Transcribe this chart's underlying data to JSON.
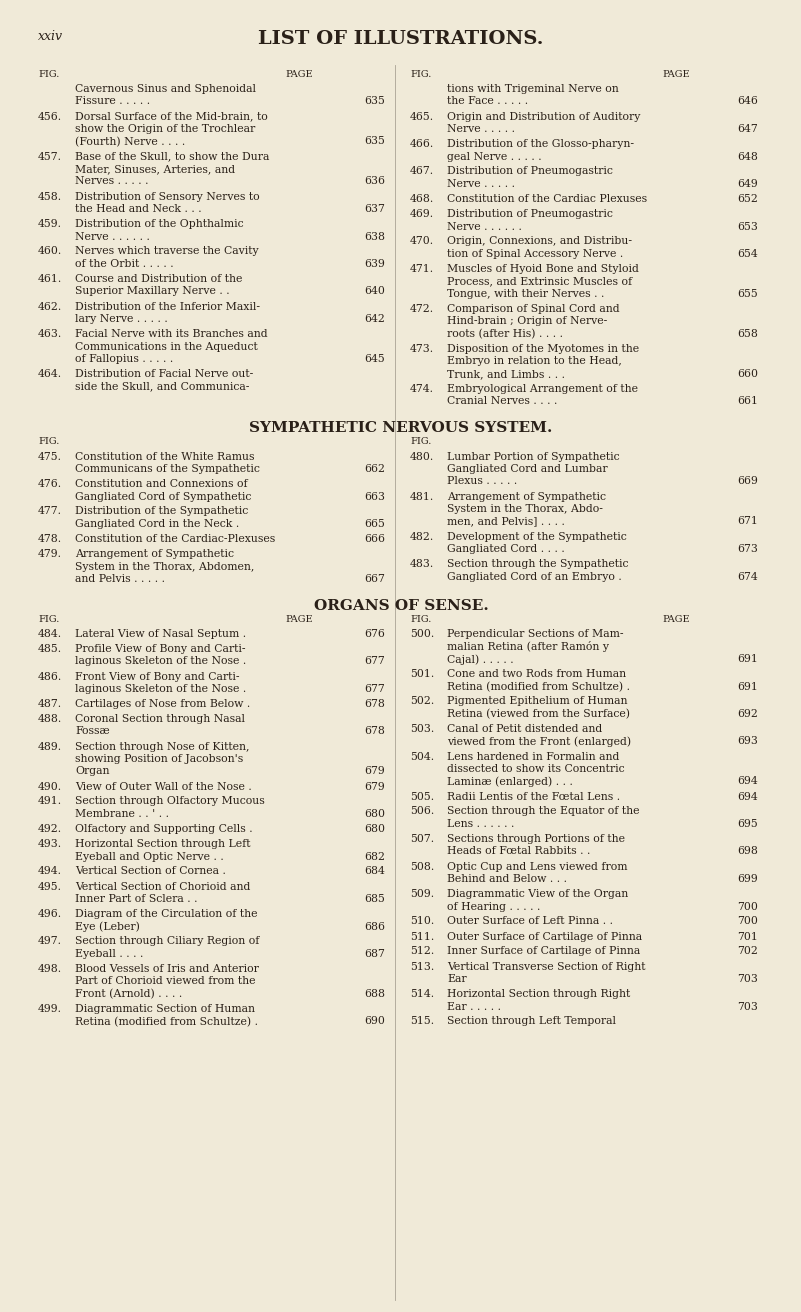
{
  "background_color": "#f0ead8",
  "text_color": "#2a2018",
  "title": "LIST OF ILLUSTRATIONS.",
  "page_label": "xxiv",
  "fig_col_header": "FIG.",
  "page_col_header": "PAGE",
  "left_entries": [
    {
      "fig": "",
      "lines": [
        "Cavernous Sinus and Sphenoidal",
        "Fissure . . . . ."
      ],
      "page": "635"
    },
    {
      "fig": "456.",
      "lines": [
        "Dorsal Surface of the Mid-brain, to",
        "show the Origin of the Trochlear",
        "(Fourth) Nerve . . . ."
      ],
      "page": "635"
    },
    {
      "fig": "457.",
      "lines": [
        "Base of the Skull, to show the Dura",
        "Mater, Sinuses, Arteries, and",
        "Nerves . . . . ."
      ],
      "page": "636"
    },
    {
      "fig": "458.",
      "lines": [
        "Distribution of Sensory Nerves to",
        "the Head and Neck . . ."
      ],
      "page": "637"
    },
    {
      "fig": "459.",
      "lines": [
        "Distribution of the Ophthalmic",
        "Nerve . . . . . ."
      ],
      "page": "638"
    },
    {
      "fig": "460.",
      "lines": [
        "Nerves which traverse the Cavity",
        "of the Orbit . . . . ."
      ],
      "page": "639"
    },
    {
      "fig": "461.",
      "lines": [
        "Course and Distribution of the",
        "Superior Maxillary Nerve . ."
      ],
      "page": "640"
    },
    {
      "fig": "462.",
      "lines": [
        "Distribution of the Inferior Maxil-",
        "lary Nerve . . . . ."
      ],
      "page": "642"
    },
    {
      "fig": "463.",
      "lines": [
        "Facial Nerve with its Branches and",
        "Communications in the Aqueduct",
        "of Fallopius . . . . ."
      ],
      "page": "645"
    },
    {
      "fig": "464.",
      "lines": [
        "Distribution of Facial Nerve out-",
        "side the Skull, and Communica-"
      ],
      "page": ""
    }
  ],
  "right_entries": [
    {
      "fig": "",
      "lines": [
        "tions with Trigeminal Nerve on",
        "the Face . . . . ."
      ],
      "page": "646"
    },
    {
      "fig": "465.",
      "lines": [
        "Origin and Distribution of Auditory",
        "Nerve . . . . ."
      ],
      "page": "647"
    },
    {
      "fig": "466.",
      "lines": [
        "Distribution of the Glosso-pharyn-",
        "geal Nerve . . . . ."
      ],
      "page": "648"
    },
    {
      "fig": "467.",
      "lines": [
        "Distribution of Pneumogastric",
        "Nerve . . . . ."
      ],
      "page": "649"
    },
    {
      "fig": "468.",
      "lines": [
        "Constitution of the Cardiac Plexuses"
      ],
      "page": "652"
    },
    {
      "fig": "469.",
      "lines": [
        "Distribution of Pneumogastric",
        "Nerve . . . . . ."
      ],
      "page": "653"
    },
    {
      "fig": "470.",
      "lines": [
        "Origin, Connexions, and Distribu-",
        "tion of Spinal Accessory Nerve ."
      ],
      "page": "654"
    },
    {
      "fig": "471.",
      "lines": [
        "Muscles of Hyoid Bone and Styloid",
        "Process, and Extrinsic Muscles of",
        "Tongue, with their Nerves . ."
      ],
      "page": "655"
    },
    {
      "fig": "472.",
      "lines": [
        "Comparison of Spinal Cord and",
        "Hind-brain ; Origin of Nerve-",
        "roots (after His) . . . ."
      ],
      "page": "658"
    },
    {
      "fig": "473.",
      "lines": [
        "Disposition of the Myotomes in the",
        "Embryo in relation to the Head,",
        "Trunk, and Limbs . . ."
      ],
      "page": "660"
    },
    {
      "fig": "474.",
      "lines": [
        "Embryological Arrangement of the",
        "Cranial Nerves . . . ."
      ],
      "page": "661"
    }
  ],
  "section_header": "SYMPATHETIC NERVOUS SYSTEM.",
  "symp_left_entries": [
    {
      "fig": "475.",
      "lines": [
        "Constitution of the White Ramus",
        "Communicans of the Sympathetic"
      ],
      "page": "662"
    },
    {
      "fig": "476.",
      "lines": [
        "Constitution and Connexions of",
        "Gangliated Cord of Sympathetic"
      ],
      "page": "663"
    },
    {
      "fig": "477.",
      "lines": [
        "Distribution of the Sympathetic",
        "Gangliated Cord in the Neck ."
      ],
      "page": "665"
    },
    {
      "fig": "478.",
      "lines": [
        "Constitution of the Cardiac-Plexuses"
      ],
      "page": "666"
    },
    {
      "fig": "479.",
      "lines": [
        "Arrangement of Sympathetic",
        "System in the Thorax, Abdomen,",
        "and Pelvis . . . . ."
      ],
      "page": "667"
    }
  ],
  "symp_right_entries": [
    {
      "fig": "480.",
      "lines": [
        "Lumbar Portion of Sympathetic",
        "Gangliated Cord and Lumbar",
        "Plexus . . . . ."
      ],
      "page": "669"
    },
    {
      "fig": "481.",
      "lines": [
        "Arrangement of Sympathetic",
        "System in the Thorax, Abdo-",
        "men, and Pelvis] . . . ."
      ],
      "page": "671"
    },
    {
      "fig": "482.",
      "lines": [
        "Development of the Sympathetic",
        "Gangliated Cord . . . ."
      ],
      "page": "673"
    },
    {
      "fig": "483.",
      "lines": [
        "Section through the Sympathetic",
        "Gangliated Cord of an Embryo ."
      ],
      "page": "674"
    }
  ],
  "section_header2": "ORGANS OF SENSE.",
  "organs_left_entries": [
    {
      "fig": "484.",
      "lines": [
        "Lateral View of Nasal Septum ."
      ],
      "page": "676"
    },
    {
      "fig": "485.",
      "lines": [
        "Profile View of Bony and Carti-",
        "laginous Skeleton of the Nose ."
      ],
      "page": "677"
    },
    {
      "fig": "486.",
      "lines": [
        "Front View of Bony and Carti-",
        "laginous Skeleton of the Nose ."
      ],
      "page": "677"
    },
    {
      "fig": "487.",
      "lines": [
        "Cartilages of Nose from Below ."
      ],
      "page": "678"
    },
    {
      "fig": "488.",
      "lines": [
        "Coronal Section through Nasal",
        "Fossæ"
      ],
      "page": "678"
    },
    {
      "fig": "489.",
      "lines": [
        "Section through Nose of Kitten,",
        "showing Position of Jacobson's",
        "Organ"
      ],
      "page": "679"
    },
    {
      "fig": "490.",
      "lines": [
        "View of Outer Wall of the Nose ."
      ],
      "page": "679"
    },
    {
      "fig": "491.",
      "lines": [
        "Section through Olfactory Mucous",
        "Membrane . . ' . ."
      ],
      "page": "680"
    },
    {
      "fig": "492.",
      "lines": [
        "Olfactory and Supporting Cells ."
      ],
      "page": "680"
    },
    {
      "fig": "493.",
      "lines": [
        "Horizontal Section through Left",
        "Eyeball and Optic Nerve . ."
      ],
      "page": "682"
    },
    {
      "fig": "494.",
      "lines": [
        "Vertical Section of Cornea ."
      ],
      "page": "684"
    },
    {
      "fig": "495.",
      "lines": [
        "Vertical Section of Chorioid and",
        "Inner Part of Sclera . ."
      ],
      "page": "685"
    },
    {
      "fig": "496.",
      "lines": [
        "Diagram of the Circulation of the",
        "Eye (Leber)"
      ],
      "page": "686"
    },
    {
      "fig": "497.",
      "lines": [
        "Section through Ciliary Region of",
        "Eyeball . . . ."
      ],
      "page": "687"
    },
    {
      "fig": "498.",
      "lines": [
        "Blood Vessels of Iris and Anterior",
        "Part of Chorioid viewed from the",
        "Front (Arnold) . . . ."
      ],
      "page": "688"
    },
    {
      "fig": "499.",
      "lines": [
        "Diagrammatic Section of Human",
        "Retina (modified from Schultze) ."
      ],
      "page": "690"
    }
  ],
  "organs_right_entries": [
    {
      "fig": "500.",
      "lines": [
        "Perpendicular Sections of Mam-",
        "malian Retina (after Ramón y",
        "Cajal) . . . . ."
      ],
      "page": "691"
    },
    {
      "fig": "501.",
      "lines": [
        "Cone and two Rods from Human",
        "Retina (modified from Schultze) ."
      ],
      "page": "691"
    },
    {
      "fig": "502.",
      "lines": [
        "Pigmented Epithelium of Human",
        "Retina (viewed from the Surface)"
      ],
      "page": "692"
    },
    {
      "fig": "503.",
      "lines": [
        "Canal of Petit distended and",
        "viewed from the Front (enlarged)"
      ],
      "page": "693"
    },
    {
      "fig": "504.",
      "lines": [
        "Lens hardened in Formalin and",
        "dissected to show its Concentric",
        "Laminæ (enlarged) . . ."
      ],
      "page": "694"
    },
    {
      "fig": "505.",
      "lines": [
        "Radii Lentis of the Fœtal Lens ."
      ],
      "page": "694"
    },
    {
      "fig": "506.",
      "lines": [
        "Section through the Equator of the",
        "Lens . . . . . ."
      ],
      "page": "695"
    },
    {
      "fig": "507.",
      "lines": [
        "Sections through Portions of the",
        "Heads of Fœtal Rabbits . ."
      ],
      "page": "698"
    },
    {
      "fig": "508.",
      "lines": [
        "Optic Cup and Lens viewed from",
        "Behind and Below . . ."
      ],
      "page": "699"
    },
    {
      "fig": "509.",
      "lines": [
        "Diagrammatic View of the Organ",
        "of Hearing . . . . ."
      ],
      "page": "700"
    },
    {
      "fig": "510.",
      "lines": [
        "Outer Surface of Left Pinna . ."
      ],
      "page": "700"
    },
    {
      "fig": "511.",
      "lines": [
        "Outer Surface of Cartilage of Pinna"
      ],
      "page": "701"
    },
    {
      "fig": "512.",
      "lines": [
        "Inner Surface of Cartilage of Pinna"
      ],
      "page": "702"
    },
    {
      "fig": "513.",
      "lines": [
        "Vertical Transverse Section of Right",
        "Ear"
      ],
      "page": "703"
    },
    {
      "fig": "514.",
      "lines": [
        "Horizontal Section through Right",
        "Ear . . . . ."
      ],
      "page": "703"
    },
    {
      "fig": "515.",
      "lines": [
        "Section through Left Temporal"
      ],
      "page": ""
    }
  ]
}
